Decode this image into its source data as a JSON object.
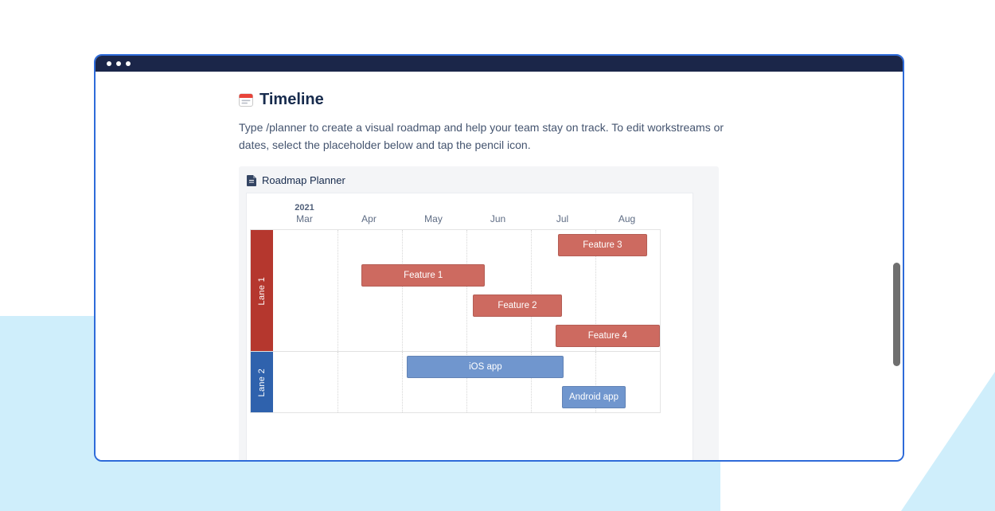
{
  "theme": {
    "window_border": "#2e6bd9",
    "titlebar_bg": "#1b2649",
    "background_accent": "#cfeefb",
    "panel_bg": "#f4f5f7",
    "heading_color": "#172b4d",
    "body_text_color": "#44546f"
  },
  "document": {
    "title": "Timeline",
    "description": "Type /planner to create a visual roadmap and help your team stay on track. To edit workstreams or dates, select the placeholder below and tap the pencil icon."
  },
  "macro": {
    "title": "Roadmap Planner"
  },
  "icons": {
    "heading_icon": "calendar-icon",
    "macro_icon": "page-icon"
  },
  "chart_data": {
    "type": "gantt",
    "title": "Roadmap Planner",
    "year_label": "2021",
    "months": [
      "Mar",
      "Apr",
      "May",
      "Jun",
      "Jul",
      "Aug"
    ],
    "time_unit": "months from 2021-03-01",
    "lanes": [
      {
        "label": "Lane 1",
        "color": "#b5372e",
        "bar_color": "#cd6a60",
        "rows": 4,
        "bars": [
          {
            "label": "Feature 3",
            "start": 4.42,
            "end": 5.8,
            "row": 0
          },
          {
            "label": "Feature 1",
            "start": 1.37,
            "end": 3.29,
            "row": 1
          },
          {
            "label": "Feature 2",
            "start": 3.1,
            "end": 4.48,
            "row": 2
          },
          {
            "label": "Feature 4",
            "start": 4.38,
            "end": 6.0,
            "row": 3
          }
        ]
      },
      {
        "label": "Lane 2",
        "color": "#2f62ad",
        "bar_color": "#7096ce",
        "rows": 2,
        "bars": [
          {
            "label": "iOS app",
            "start": 2.08,
            "end": 4.51,
            "row": 0
          },
          {
            "label": "Android app",
            "start": 4.48,
            "end": 5.47,
            "row": 1
          }
        ]
      }
    ]
  }
}
